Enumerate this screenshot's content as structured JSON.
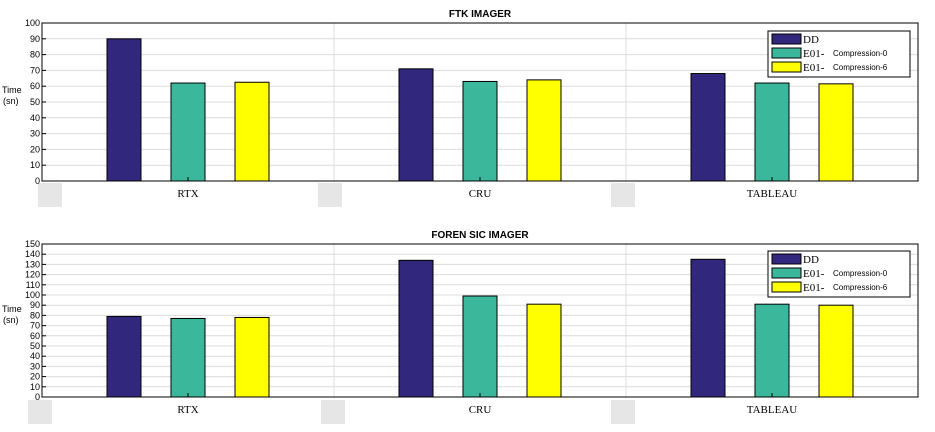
{
  "colors": {
    "DD": "#31287e",
    "E01_c0": "#3bb89c",
    "E01_c6": "#ffff00"
  },
  "chart_data": [
    {
      "type": "bar",
      "title": "FTK IMAGER",
      "ylabel_line1": "Time",
      "ylabel_line2": "(sn)",
      "categories": [
        "RTX",
        "CRU",
        "TABLEAU"
      ],
      "ylim": [
        0,
        100
      ],
      "yticks": [
        0,
        10,
        20,
        30,
        40,
        50,
        60,
        70,
        80,
        90,
        100
      ],
      "grid": true,
      "legend_placement": "top-right",
      "series": [
        {
          "name": "DD",
          "legend_main": "DD",
          "legend_sub": "",
          "values": [
            90,
            71,
            68
          ]
        },
        {
          "name": "E01- Compression-0",
          "legend_main": "E01-",
          "legend_sub": "Compression-0",
          "values": [
            62,
            63,
            62
          ]
        },
        {
          "name": "E01- Compression-6",
          "legend_main": "E01-",
          "legend_sub": "Compression-6",
          "values": [
            62.5,
            64,
            61.5
          ]
        }
      ]
    },
    {
      "type": "bar",
      "title": "FOREN SIC IMAGER",
      "ylabel_line1": "Time",
      "ylabel_line2": "(sn)",
      "categories": [
        "RTX",
        "CRU",
        "TABLEAU"
      ],
      "ylim": [
        0,
        150
      ],
      "yticks": [
        0,
        10,
        20,
        30,
        40,
        50,
        60,
        70,
        80,
        90,
        100,
        110,
        120,
        130,
        140,
        150
      ],
      "grid": true,
      "legend_placement": "top-right",
      "series": [
        {
          "name": "DD",
          "legend_main": "DD",
          "legend_sub": "",
          "values": [
            79,
            134,
            135
          ]
        },
        {
          "name": "E01- Compression-0",
          "legend_main": "E01-",
          "legend_sub": "Compression-0",
          "values": [
            77,
            99,
            91
          ]
        },
        {
          "name": "E01- Compression-6",
          "legend_main": "E01-",
          "legend_sub": "Compression-6",
          "values": [
            78,
            91,
            90
          ]
        }
      ]
    }
  ]
}
